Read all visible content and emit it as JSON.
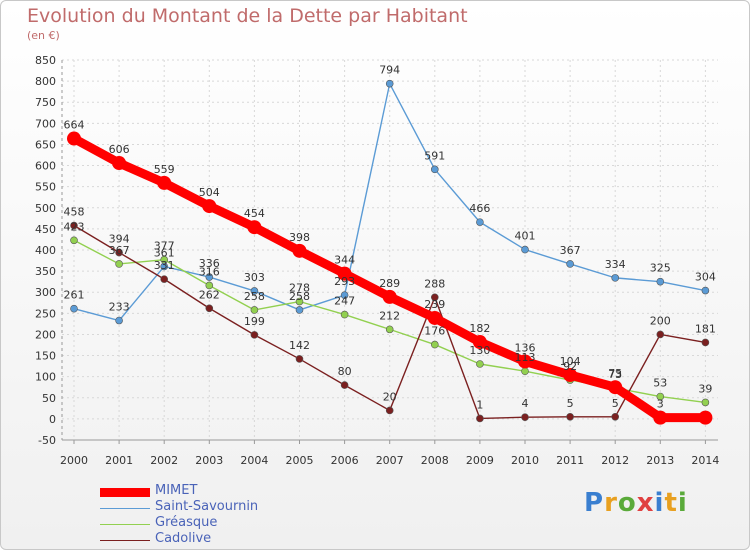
{
  "chart_data": {
    "type": "line",
    "title": "Evolution du Montant de la Dette par Habitant",
    "subtitle": "(en €)",
    "x": [
      "2000",
      "2001",
      "2002",
      "2003",
      "2004",
      "2005",
      "2006",
      "2007",
      "2008",
      "2009",
      "2010",
      "2011",
      "2012",
      "2013",
      "2014"
    ],
    "ylim": [
      -50,
      850
    ],
    "yticks": [
      -50,
      0,
      50,
      100,
      150,
      200,
      250,
      300,
      350,
      400,
      450,
      500,
      550,
      600,
      650,
      700,
      750,
      800,
      850
    ],
    "grid": true,
    "legend_position": "bottom-left",
    "series": [
      {
        "name": "MIMET",
        "color": "#ff0000",
        "values": [
          664,
          606,
          559,
          504,
          454,
          398,
          344,
          289,
          239,
          182,
          136,
          104,
          75,
          3,
          3
        ],
        "labels": [
          "664",
          "606",
          "559",
          "504",
          "454",
          "398",
          "344",
          "289",
          "239",
          "182",
          "136",
          "104",
          "75",
          "3",
          ""
        ]
      },
      {
        "name": "Saint-Savournin",
        "color": "#5b9bd5",
        "values": [
          261,
          233,
          361,
          336,
          303,
          258,
          293,
          794,
          591,
          466,
          401,
          367,
          334,
          325,
          304
        ],
        "labels": [
          "261",
          "233",
          "361",
          "336",
          "303",
          "258",
          "293",
          "794",
          "591",
          "466",
          "401",
          "367",
          "334",
          "325",
          "304"
        ]
      },
      {
        "name": "Gréasque",
        "color": "#92d050",
        "values": [
          423,
          367,
          377,
          316,
          258,
          278,
          247,
          212,
          176,
          130,
          113,
          92,
          73,
          53,
          39
        ],
        "labels": [
          "423",
          "367",
          "377",
          "316",
          "258",
          "278",
          "247",
          "212",
          "176",
          "130",
          "113",
          "92",
          "73",
          "53",
          "39"
        ]
      },
      {
        "name": "Cadolive",
        "color": "#7b2020",
        "values": [
          458,
          394,
          331,
          262,
          199,
          142,
          80,
          20,
          288,
          1,
          4,
          5,
          5,
          200,
          181
        ],
        "labels": [
          "458",
          "394",
          "331",
          "262",
          "199",
          "142",
          "80",
          "20",
          "288",
          "1",
          "4",
          "5",
          "5",
          "200",
          "181"
        ]
      }
    ]
  },
  "logo": {
    "text": "Proxiti"
  }
}
